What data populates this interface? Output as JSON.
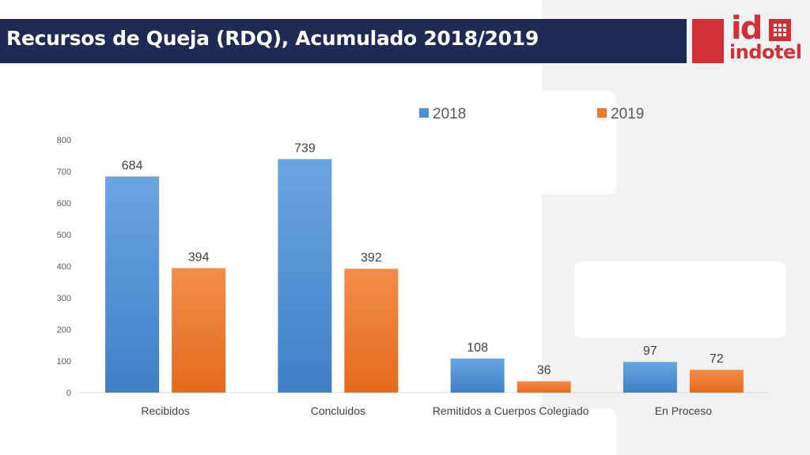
{
  "header": {
    "title": "Recursos de Queja (RDQ), Acumulado 2018/2019"
  },
  "logo": {
    "mark": "id",
    "word": "indotel",
    "color": "#d32f37"
  },
  "chart_data": {
    "type": "bar",
    "title": "",
    "xlabel": "",
    "ylabel": "",
    "categories": [
      "Recibidos",
      "Concluidos",
      "Remitidos a Cuerpos Colegiado",
      "En Proceso"
    ],
    "series": [
      {
        "name": "2018",
        "values": [
          684,
          739,
          108,
          97
        ],
        "color": "#4f8fd6"
      },
      {
        "name": "2019",
        "values": [
          394,
          392,
          36,
          72
        ],
        "color": "#ee7a2e"
      }
    ],
    "ylim": [
      0,
      800
    ],
    "yticks": [
      0,
      100,
      200,
      300,
      400,
      500,
      600,
      700,
      800
    ],
    "grid": false,
    "legend": "top-right",
    "data_labels": true
  }
}
